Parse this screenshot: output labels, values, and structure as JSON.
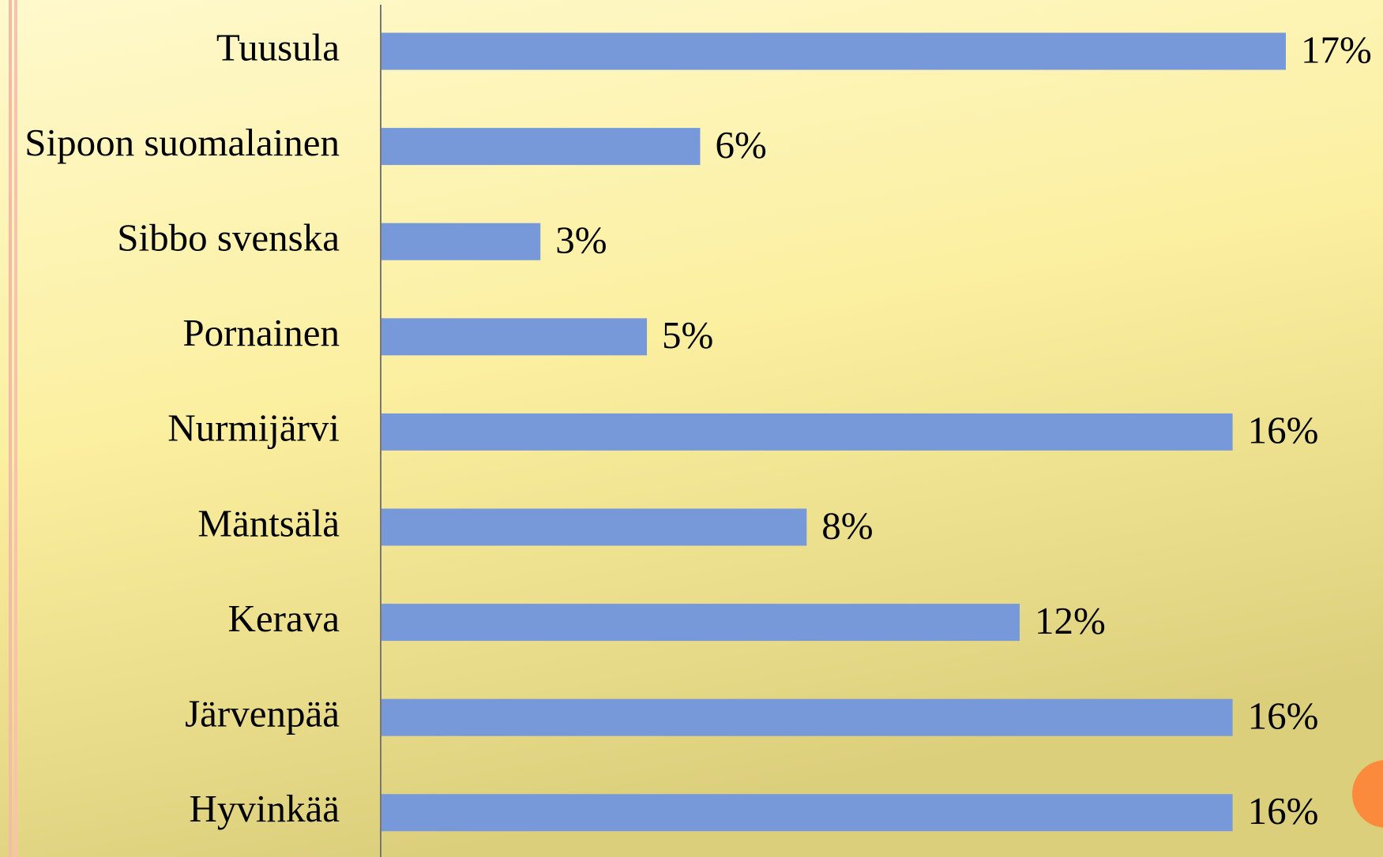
{
  "chart_data": {
    "type": "barh",
    "categories": [
      "Tuusula",
      "Sipoon suomalainen",
      "Sibbo svenska",
      "Pornainen",
      "Nurmijärvi",
      "Mäntsälä",
      "Kerava",
      "Järvenpää",
      "Hyvinkää"
    ],
    "values": [
      17,
      6,
      3,
      5,
      16,
      8,
      12,
      16,
      16
    ],
    "value_labels": [
      "17%",
      "6%",
      "3%",
      "5%",
      "16%",
      "8%",
      "12%",
      "16%",
      "16%"
    ],
    "color": "#7799d9",
    "xlim": [
      0,
      17
    ]
  }
}
